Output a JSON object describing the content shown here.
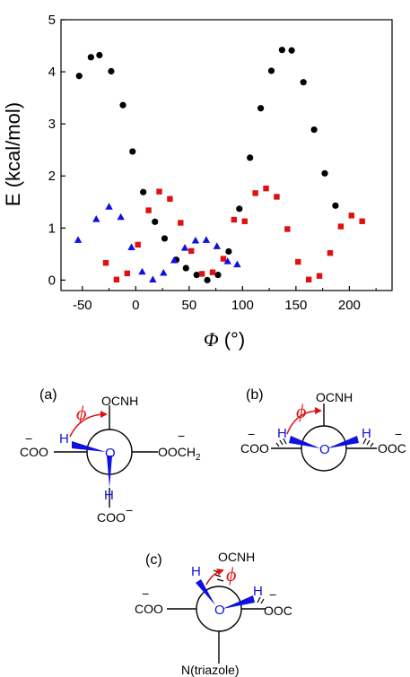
{
  "chart_data": {
    "type": "scatter",
    "xlabel": "Φ (°)",
    "xlabel_symbol": "Φ",
    "xlabel_unit": "(°)",
    "ylabel": "E (kcal/mol)",
    "xlim": [
      -70,
      240
    ],
    "ylim": [
      -0.2,
      5.0
    ],
    "x_ticks": [
      -50,
      0,
      50,
      100,
      150,
      200
    ],
    "y_ticks": [
      0,
      1,
      2,
      3,
      4,
      5
    ],
    "grid": false,
    "series": [
      {
        "color": "#000000",
        "marker": "circle",
        "points": [
          [
            -53,
            3.92
          ],
          [
            -42,
            4.28
          ],
          [
            -34,
            4.32
          ],
          [
            -23,
            4.01
          ],
          [
            -12,
            3.36
          ],
          [
            -3,
            2.47
          ],
          [
            7,
            1.69
          ],
          [
            18,
            1.12
          ],
          [
            27,
            0.8
          ],
          [
            38,
            0.39
          ],
          [
            47,
            0.23
          ],
          [
            57,
            0.1
          ],
          [
            67,
            0.0
          ],
          [
            77,
            0.1
          ],
          [
            87,
            0.55
          ],
          [
            97,
            1.37
          ],
          [
            107,
            2.35
          ],
          [
            117,
            3.3
          ],
          [
            127,
            4.02
          ],
          [
            137,
            4.42
          ],
          [
            146,
            4.41
          ],
          [
            157,
            3.8
          ],
          [
            167,
            2.89
          ],
          [
            177,
            2.05
          ],
          [
            187,
            1.43
          ]
        ]
      },
      {
        "color": "#e01010",
        "marker": "square",
        "points": [
          [
            -28,
            0.33
          ],
          [
            -18,
            0.01
          ],
          [
            -8,
            0.13
          ],
          [
            2,
            0.68
          ],
          [
            12,
            1.34
          ],
          [
            22,
            1.7
          ],
          [
            32,
            1.56
          ],
          [
            42,
            1.1
          ],
          [
            52,
            0.56
          ],
          [
            62,
            0.12
          ],
          [
            72,
            0.15
          ],
          [
            82,
            0.41
          ],
          [
            92,
            1.16
          ],
          [
            102,
            1.13
          ],
          [
            112,
            1.67
          ],
          [
            122,
            1.76
          ],
          [
            132,
            1.6
          ],
          [
            142,
            0.98
          ],
          [
            152,
            0.35
          ],
          [
            162,
            0.01
          ],
          [
            172,
            0.08
          ],
          [
            182,
            0.52
          ],
          [
            192,
            1.03
          ],
          [
            202,
            1.24
          ],
          [
            212,
            1.13
          ]
        ]
      },
      {
        "color": "#1010e0",
        "marker": "triangle",
        "points": [
          [
            -54,
            0.77
          ],
          [
            -37,
            1.17
          ],
          [
            -25,
            1.41
          ],
          [
            -14,
            1.21
          ],
          [
            -4,
            0.63
          ],
          [
            6,
            0.16
          ],
          [
            16,
            0.01
          ],
          [
            26,
            0.14
          ],
          [
            36,
            0.38
          ],
          [
            46,
            0.62
          ],
          [
            56,
            0.76
          ],
          [
            66,
            0.77
          ],
          [
            76,
            0.65
          ],
          [
            86,
            0.36
          ],
          [
            95,
            0.3
          ]
        ]
      }
    ]
  },
  "diagram": {
    "panel_a": {
      "label": "(a)",
      "phi": "ϕ",
      "center_atom": "O",
      "top": "OCNH",
      "left_minus": "−",
      "left": "COO",
      "right_minus": "−",
      "right_main": "OOCH",
      "right_sub": "2",
      "h_left": "H",
      "h_bottom": "H",
      "bottom": "COO",
      "bottom_minus": "−"
    },
    "panel_b": {
      "label": "(b)",
      "phi": "ϕ",
      "center_atom": "O",
      "top": "OCNH",
      "left_minus": "−",
      "left": "COO",
      "right_minus": "−",
      "right": "OOC",
      "h_left": "H",
      "h_right": "H"
    },
    "panel_c": {
      "label": "(c)",
      "phi": "ϕ",
      "center_atom": "O",
      "top": "OCNH",
      "left_minus": "−",
      "left": "COO",
      "right_minus": "−",
      "right": "OOC",
      "h_left": "H",
      "h_right": "H",
      "bottom": "N(triazole)"
    }
  }
}
